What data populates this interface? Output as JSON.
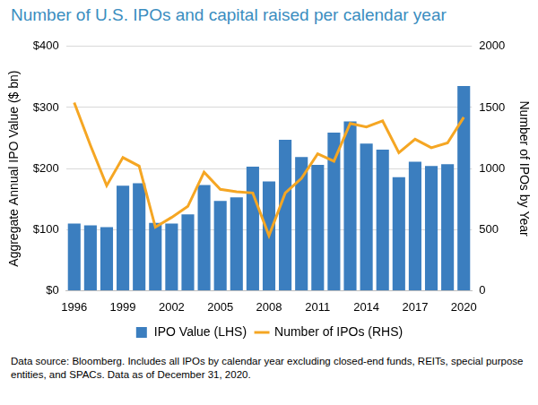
{
  "chart_data": {
    "type": "bar",
    "title": "Number of U.S. IPOs and capital raised per calendar year",
    "footnote": "Data source: Bloomberg. Includes all IPOs by calendar year excluding closed-end funds, REITs, special purpose entities, and SPACs. Data as of December 31, 2020.",
    "y_label": "Aggregate Annual IPO Value ($ bn)",
    "y2_label": "Number of IPOs by Year",
    "categories": [
      "1996",
      null,
      null,
      "1999",
      null,
      null,
      "2002",
      null,
      null,
      "2005",
      null,
      null,
      "2008",
      null,
      null,
      "2011",
      null,
      null,
      "2014",
      null,
      null,
      "2017",
      null,
      null,
      "2020"
    ],
    "series": [
      {
        "name": "IPO Value (LHS)",
        "type": "bar",
        "color": "#3b7ebf",
        "values": [
          110,
          107,
          104,
          172,
          176,
          111,
          110,
          125,
          173,
          147,
          153,
          203,
          179,
          247,
          219,
          206,
          259,
          277,
          241,
          231,
          186,
          211,
          204,
          207,
          335
        ]
      },
      {
        "name": "Number of IPOs (RHS)",
        "type": "line",
        "axis": "y2",
        "color": "#f5a623",
        "marker": "none",
        "values": [
          1540,
          1190,
          860,
          1090,
          1020,
          520,
          600,
          690,
          970,
          830,
          810,
          800,
          450,
          800,
          920,
          1120,
          1060,
          1370,
          1340,
          1390,
          1130,
          1240,
          1170,
          1210,
          1420
        ]
      }
    ],
    "ylim": [
      0,
      400
    ],
    "yticks": [
      {
        "value": 0,
        "label": "$0"
      },
      {
        "value": 100,
        "label": "$100"
      },
      {
        "value": 200,
        "label": "$200"
      },
      {
        "value": 300,
        "label": "$300"
      },
      {
        "value": 400,
        "label": "$400"
      }
    ],
    "y2lim": [
      0,
      2000
    ],
    "y2ticks": [
      0,
      500,
      1000,
      1500,
      2000
    ],
    "grid": true,
    "legend": "bottom"
  }
}
